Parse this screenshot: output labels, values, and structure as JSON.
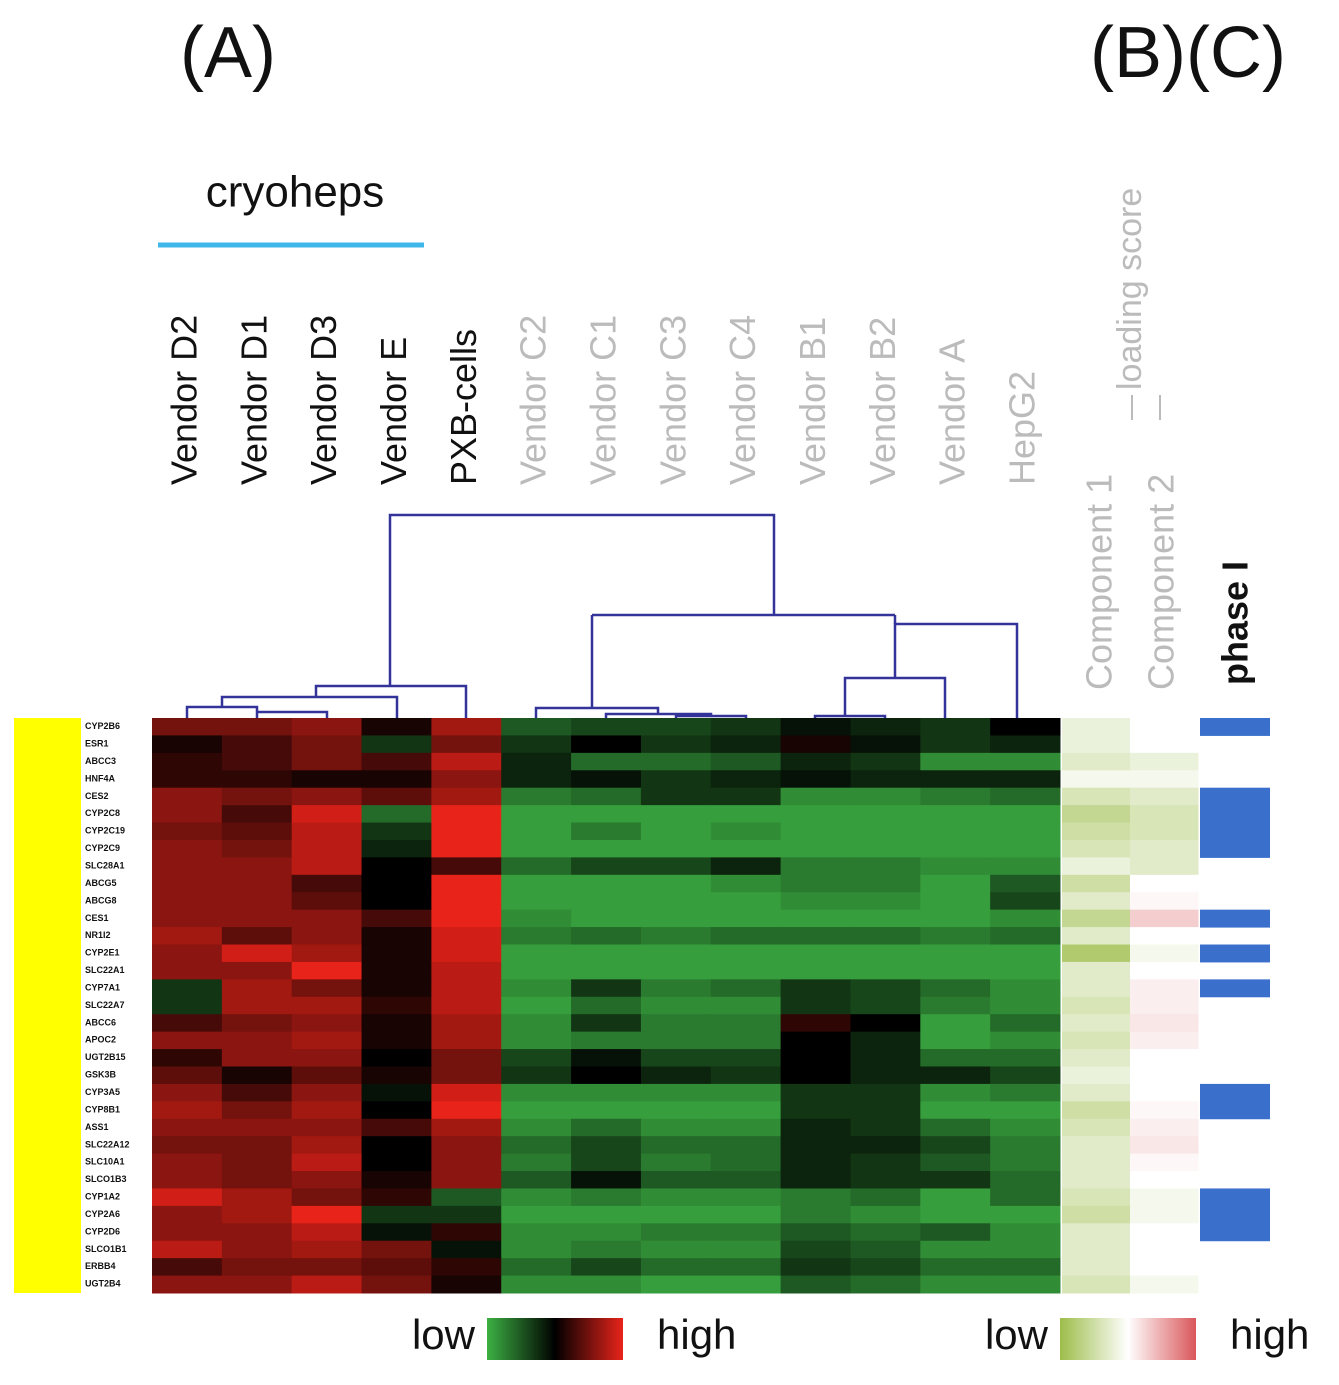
{
  "chart_data": [
    {
      "type": "heatmap",
      "title": "(A)",
      "group_label": "cryoheps",
      "categories": [
        "Vendor D2",
        "Vendor D1",
        "Vendor D3",
        "Vendor E",
        "PXB-cells",
        "Vendor C2",
        "Vendor C1",
        "Vendor C3",
        "Vendor C4",
        "Vendor B1",
        "Vendor B2",
        "Vendor A",
        "HepG2"
      ],
      "label_colors": [
        "#111111",
        "#111111",
        "#111111",
        "#111111",
        "#111111",
        "#bbbbbb",
        "#bbbbbb",
        "#bbbbbb",
        "#bbbbbb",
        "#bbbbbb",
        "#bbbbbb",
        "#bbbbbb",
        "#bbbbbb"
      ],
      "group_color": "#3fb7ea",
      "rows": [
        "CYP2B6",
        "ESR1",
        "ABCC3",
        "HNF4A",
        "CES2",
        "CYP2C8",
        "CYP2C19",
        "CYP2C9",
        "SLC28A1",
        "ABCG5",
        "ABCG8",
        "CES1",
        "NR1I2",
        "CYP2E1",
        "SLC22A1",
        "CYP7A1",
        "SLC22A7",
        "ABCC6",
        "APOC2",
        "UGT2B15",
        "GSK3B",
        "CYP3A5",
        "CYP8B1",
        "ASS1",
        "SLC22A12",
        "SLC10A1",
        "SLCO1B3",
        "CYP1A2",
        "CYP2A6",
        "CYP2D6",
        "SLCO1B1",
        "ERBB4",
        "UGT2B4"
      ],
      "zlim": [
        -1,
        1
      ],
      "colors": {
        "low": "#3cb043",
        "mid": "#000000",
        "high": "#e8231a"
      },
      "legend": {
        "low": "low",
        "high": "high"
      },
      "values": [
        [
          0.5,
          0.5,
          0.6,
          0.1,
          0.7,
          -0.5,
          -0.4,
          -0.4,
          -0.3,
          -0.1,
          -0.2,
          -0.3,
          0
        ],
        [
          0.1,
          0.3,
          0.5,
          -0.3,
          0.5,
          -0.3,
          0,
          -0.3,
          -0.2,
          0.1,
          -0.1,
          -0.3,
          -0.2
        ],
        [
          0.2,
          0.3,
          0.5,
          0.3,
          0.8,
          -0.2,
          -0.6,
          -0.6,
          -0.5,
          -0.2,
          -0.3,
          -0.8,
          -0.8
        ],
        [
          0.2,
          0.2,
          0.1,
          0.1,
          0.6,
          -0.2,
          -0.1,
          -0.3,
          -0.2,
          -0.1,
          -0.2,
          -0.2,
          -0.2
        ],
        [
          0.6,
          0.5,
          0.6,
          0.4,
          0.7,
          -0.7,
          -0.6,
          -0.3,
          -0.3,
          -0.8,
          -0.8,
          -0.7,
          -0.6
        ],
        [
          0.6,
          0.3,
          0.9,
          -0.6,
          1,
          -0.9,
          -0.9,
          -0.9,
          -0.9,
          -0.9,
          -0.9,
          -0.9,
          -0.9
        ],
        [
          0.5,
          0.4,
          0.8,
          -0.3,
          1,
          -0.9,
          -0.7,
          -0.9,
          -0.8,
          -0.9,
          -0.9,
          -0.9,
          -0.9
        ],
        [
          0.6,
          0.5,
          0.8,
          -0.2,
          1,
          -0.9,
          -0.9,
          -0.9,
          -0.9,
          -0.9,
          -0.9,
          -0.9,
          -0.9
        ],
        [
          0.6,
          0.6,
          0.8,
          0,
          0.3,
          -0.6,
          -0.4,
          -0.4,
          -0.2,
          -0.7,
          -0.7,
          -0.8,
          -0.8
        ],
        [
          0.6,
          0.6,
          0.3,
          0,
          1,
          -0.9,
          -0.9,
          -0.9,
          -0.8,
          -0.7,
          -0.7,
          -0.9,
          -0.5
        ],
        [
          0.6,
          0.6,
          0.4,
          0,
          1,
          -0.9,
          -0.9,
          -0.9,
          -0.9,
          -0.8,
          -0.8,
          -0.9,
          -0.4
        ],
        [
          0.6,
          0.6,
          0.6,
          0.3,
          1,
          -0.8,
          -0.9,
          -0.9,
          -0.9,
          -0.9,
          -0.9,
          -0.9,
          -0.8
        ],
        [
          0.7,
          0.4,
          0.6,
          0.1,
          0.9,
          -0.7,
          -0.6,
          -0.7,
          -0.6,
          -0.6,
          -0.6,
          -0.7,
          -0.6
        ],
        [
          0.6,
          0.9,
          0.7,
          0.1,
          0.9,
          -0.9,
          -0.9,
          -0.9,
          -0.9,
          -0.9,
          -0.9,
          -0.9,
          -0.9
        ],
        [
          0.6,
          0.6,
          1,
          0.1,
          0.8,
          -0.9,
          -0.9,
          -0.9,
          -0.9,
          -0.9,
          -0.9,
          -0.9,
          -0.9
        ],
        [
          -0.3,
          0.7,
          0.5,
          0.1,
          0.8,
          -0.8,
          -0.3,
          -0.7,
          -0.6,
          -0.3,
          -0.4,
          -0.6,
          -0.8
        ],
        [
          -0.3,
          0.7,
          0.7,
          0.2,
          0.8,
          -0.9,
          -0.6,
          -0.8,
          -0.8,
          -0.3,
          -0.4,
          -0.7,
          -0.8
        ],
        [
          0.3,
          0.5,
          0.6,
          0.1,
          0.7,
          -0.8,
          -0.3,
          -0.7,
          -0.7,
          0.2,
          0,
          -0.9,
          -0.6
        ],
        [
          0.6,
          0.6,
          0.7,
          0.1,
          0.7,
          -0.8,
          -0.7,
          -0.7,
          -0.7,
          0,
          -0.2,
          -0.9,
          -0.8
        ],
        [
          0.2,
          0.6,
          0.6,
          0,
          0.5,
          -0.4,
          -0.1,
          -0.4,
          -0.4,
          0,
          -0.2,
          -0.6,
          -0.6
        ],
        [
          0.4,
          0.1,
          0.4,
          0.1,
          0.5,
          -0.3,
          0,
          -0.2,
          -0.3,
          0,
          -0.2,
          -0.2,
          -0.4
        ],
        [
          0.6,
          0.3,
          0.6,
          -0.1,
          0.9,
          -0.8,
          -0.8,
          -0.8,
          -0.8,
          -0.3,
          -0.3,
          -0.8,
          -0.7
        ],
        [
          0.7,
          0.5,
          0.7,
          0,
          1,
          -0.9,
          -0.9,
          -0.9,
          -0.9,
          -0.3,
          -0.3,
          -0.9,
          -0.9
        ],
        [
          0.6,
          0.6,
          0.6,
          0.3,
          0.7,
          -0.8,
          -0.6,
          -0.8,
          -0.8,
          -0.2,
          -0.3,
          -0.6,
          -0.8
        ],
        [
          0.5,
          0.5,
          0.7,
          0,
          0.6,
          -0.6,
          -0.4,
          -0.6,
          -0.6,
          -0.2,
          -0.2,
          -0.4,
          -0.7
        ],
        [
          0.6,
          0.5,
          0.8,
          0,
          0.6,
          -0.7,
          -0.4,
          -0.7,
          -0.6,
          -0.2,
          -0.3,
          -0.5,
          -0.7
        ],
        [
          0.6,
          0.5,
          0.6,
          0.1,
          0.6,
          -0.5,
          -0.1,
          -0.5,
          -0.5,
          -0.2,
          -0.3,
          -0.3,
          -0.6
        ],
        [
          0.9,
          0.7,
          0.5,
          0.2,
          -0.5,
          -0.8,
          -0.7,
          -0.8,
          -0.8,
          -0.7,
          -0.6,
          -0.9,
          -0.6
        ],
        [
          0.6,
          0.7,
          1,
          -0.3,
          -0.3,
          -0.9,
          -0.9,
          -0.9,
          -0.9,
          -0.7,
          -0.8,
          -0.9,
          -0.9
        ],
        [
          0.6,
          0.6,
          0.8,
          -0.1,
          0.2,
          -0.8,
          -0.8,
          -0.7,
          -0.7,
          -0.5,
          -0.6,
          -0.5,
          -0.8
        ],
        [
          0.8,
          0.6,
          0.7,
          0.5,
          -0.1,
          -0.8,
          -0.7,
          -0.8,
          -0.8,
          -0.4,
          -0.5,
          -0.8,
          -0.8
        ],
        [
          0.3,
          0.5,
          0.5,
          0.4,
          0.2,
          -0.6,
          -0.4,
          -0.6,
          -0.6,
          -0.3,
          -0.4,
          -0.6,
          -0.6
        ],
        [
          0.6,
          0.6,
          0.8,
          0.5,
          0.1,
          -0.8,
          -0.8,
          -0.9,
          -0.9,
          -0.5,
          -0.6,
          -0.8,
          -0.8
        ]
      ]
    },
    {
      "type": "heatmap",
      "title": "(B)(C)",
      "subtitle": "loading score",
      "categories": [
        "Component 1",
        "Component 2"
      ],
      "label_color": "#bbbbbb",
      "zlim": [
        -1,
        1
      ],
      "colors": {
        "low": "#9dbd4a",
        "mid": "#ffffff",
        "high": "#d9575a"
      },
      "legend": {
        "low": "low",
        "high": "high"
      },
      "values": [
        [
          -0.2,
          0
        ],
        [
          -0.2,
          0
        ],
        [
          -0.3,
          -0.2
        ],
        [
          -0.1,
          -0.1
        ],
        [
          -0.4,
          -0.3
        ],
        [
          -0.6,
          -0.4
        ],
        [
          -0.5,
          -0.4
        ],
        [
          -0.4,
          -0.3
        ],
        [
          -0.2,
          -0.3
        ],
        [
          -0.5,
          0
        ],
        [
          -0.3,
          0.05
        ],
        [
          -0.6,
          0.3
        ],
        [
          -0.3,
          0
        ],
        [
          -0.8,
          -0.1
        ],
        [
          -0.3,
          0
        ],
        [
          -0.3,
          0.1
        ],
        [
          -0.4,
          0.1
        ],
        [
          -0.3,
          0.15
        ],
        [
          -0.4,
          0.1
        ],
        [
          -0.3,
          0
        ],
        [
          -0.2,
          0
        ],
        [
          -0.3,
          0
        ],
        [
          -0.5,
          0.05
        ],
        [
          -0.4,
          0.1
        ],
        [
          -0.3,
          0.15
        ],
        [
          -0.3,
          0.05
        ],
        [
          -0.3,
          0
        ],
        [
          -0.4,
          -0.1
        ],
        [
          -0.5,
          -0.1
        ],
        [
          -0.3,
          0
        ],
        [
          -0.3,
          0
        ],
        [
          -0.3,
          0
        ],
        [
          -0.4,
          -0.1
        ]
      ]
    },
    {
      "type": "annotation",
      "title": "phase I",
      "color": "#3a6fcc",
      "values": [
        1,
        0,
        0,
        0,
        1,
        1,
        1,
        1,
        0,
        0,
        0,
        1,
        0,
        1,
        0,
        1,
        0,
        0,
        0,
        0,
        0,
        1,
        1,
        0,
        0,
        0,
        0,
        1,
        1,
        1,
        0,
        0,
        0
      ]
    }
  ]
}
